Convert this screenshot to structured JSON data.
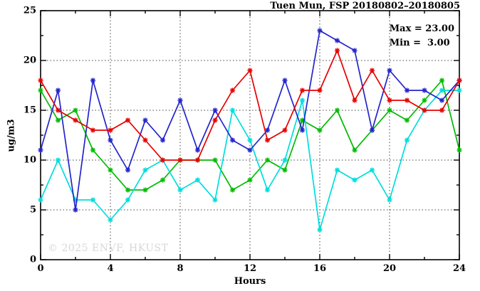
{
  "header": {
    "title": "Tuen Mun, FSP 20180802–20180805"
  },
  "legend": {
    "max_label": "Max = 23.00",
    "min_label": "Min =  3.00"
  },
  "watermark": "© 2025 ENVF, HKUST",
  "chart_data": {
    "type": "line",
    "title": "Tuen Mun, FSP 20180802–20180805",
    "xlabel": "Hours",
    "ylabel": "ug/m3",
    "xlim": [
      0,
      24
    ],
    "ylim": [
      0,
      25
    ],
    "xticks": [
      0,
      4,
      8,
      12,
      16,
      20,
      24
    ],
    "yticks": [
      0,
      5,
      10,
      15,
      20,
      25
    ],
    "x_minor_step": 2,
    "y_minor_step": 2.5,
    "grid": "dotted lines at major ticks, mirrored inward ticks on all four borders",
    "legend_position": "inside top-right",
    "stats": {
      "max": 23.0,
      "min": 3.0
    },
    "x": [
      0,
      1,
      2,
      3,
      4,
      5,
      6,
      7,
      8,
      9,
      10,
      11,
      12,
      13,
      14,
      15,
      16,
      17,
      18,
      19,
      20,
      21,
      22,
      23,
      24
    ],
    "series": [
      {
        "name": "day-1-red",
        "color": "#e60000",
        "marker": "asterisk",
        "values": [
          18,
          15,
          14,
          13,
          13,
          14,
          12,
          10,
          10,
          10,
          14,
          17,
          19,
          12,
          13,
          17,
          17,
          21,
          16,
          19,
          16,
          16,
          15,
          15,
          18
        ]
      },
      {
        "name": "day-2-blue",
        "color": "#2424cc",
        "marker": "asterisk",
        "values": [
          11,
          17,
          5,
          18,
          12,
          9,
          14,
          12,
          16,
          11,
          15,
          12,
          11,
          13,
          18,
          13,
          23,
          22,
          21,
          13,
          19,
          17,
          17,
          16,
          18
        ]
      },
      {
        "name": "day-3-green",
        "color": "#00bb00",
        "marker": "asterisk",
        "values": [
          17,
          14,
          15,
          11,
          9,
          7,
          7,
          8,
          10,
          10,
          10,
          7,
          8,
          10,
          9,
          14,
          13,
          15,
          11,
          13,
          15,
          14,
          16,
          18,
          11
        ]
      },
      {
        "name": "day-4-cyan",
        "color": "#00dddd",
        "marker": "asterisk",
        "values": [
          6,
          10,
          6,
          6,
          4,
          6,
          9,
          10,
          7,
          8,
          6,
          15,
          12,
          7,
          10,
          16,
          3,
          9,
          8,
          9,
          6,
          12,
          15,
          17,
          17
        ]
      }
    ]
  }
}
